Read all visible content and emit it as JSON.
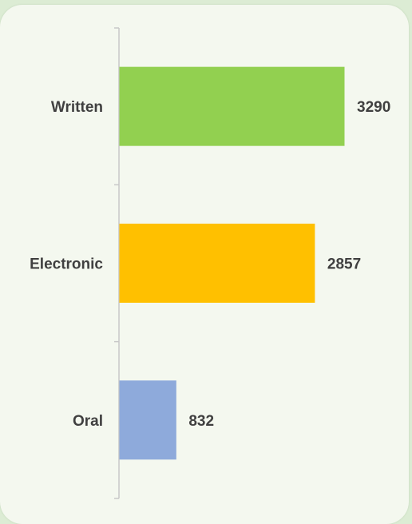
{
  "chart_data": {
    "type": "bar",
    "orientation": "horizontal",
    "categories": [
      "Written",
      "Electronic",
      "Oral"
    ],
    "values": [
      3290,
      2857,
      832
    ],
    "value_labels": [
      "3290",
      "2857",
      "832"
    ],
    "colors": [
      "#92d050",
      "#ffc000",
      "#8eaadb"
    ],
    "xlim": [
      0,
      3400
    ],
    "grid": false,
    "legend": "none"
  },
  "colors": {
    "page_background": "#dcecd4",
    "card_background": "#f4f8ef",
    "axis": "#c8c8c8",
    "text": "#404040"
  }
}
